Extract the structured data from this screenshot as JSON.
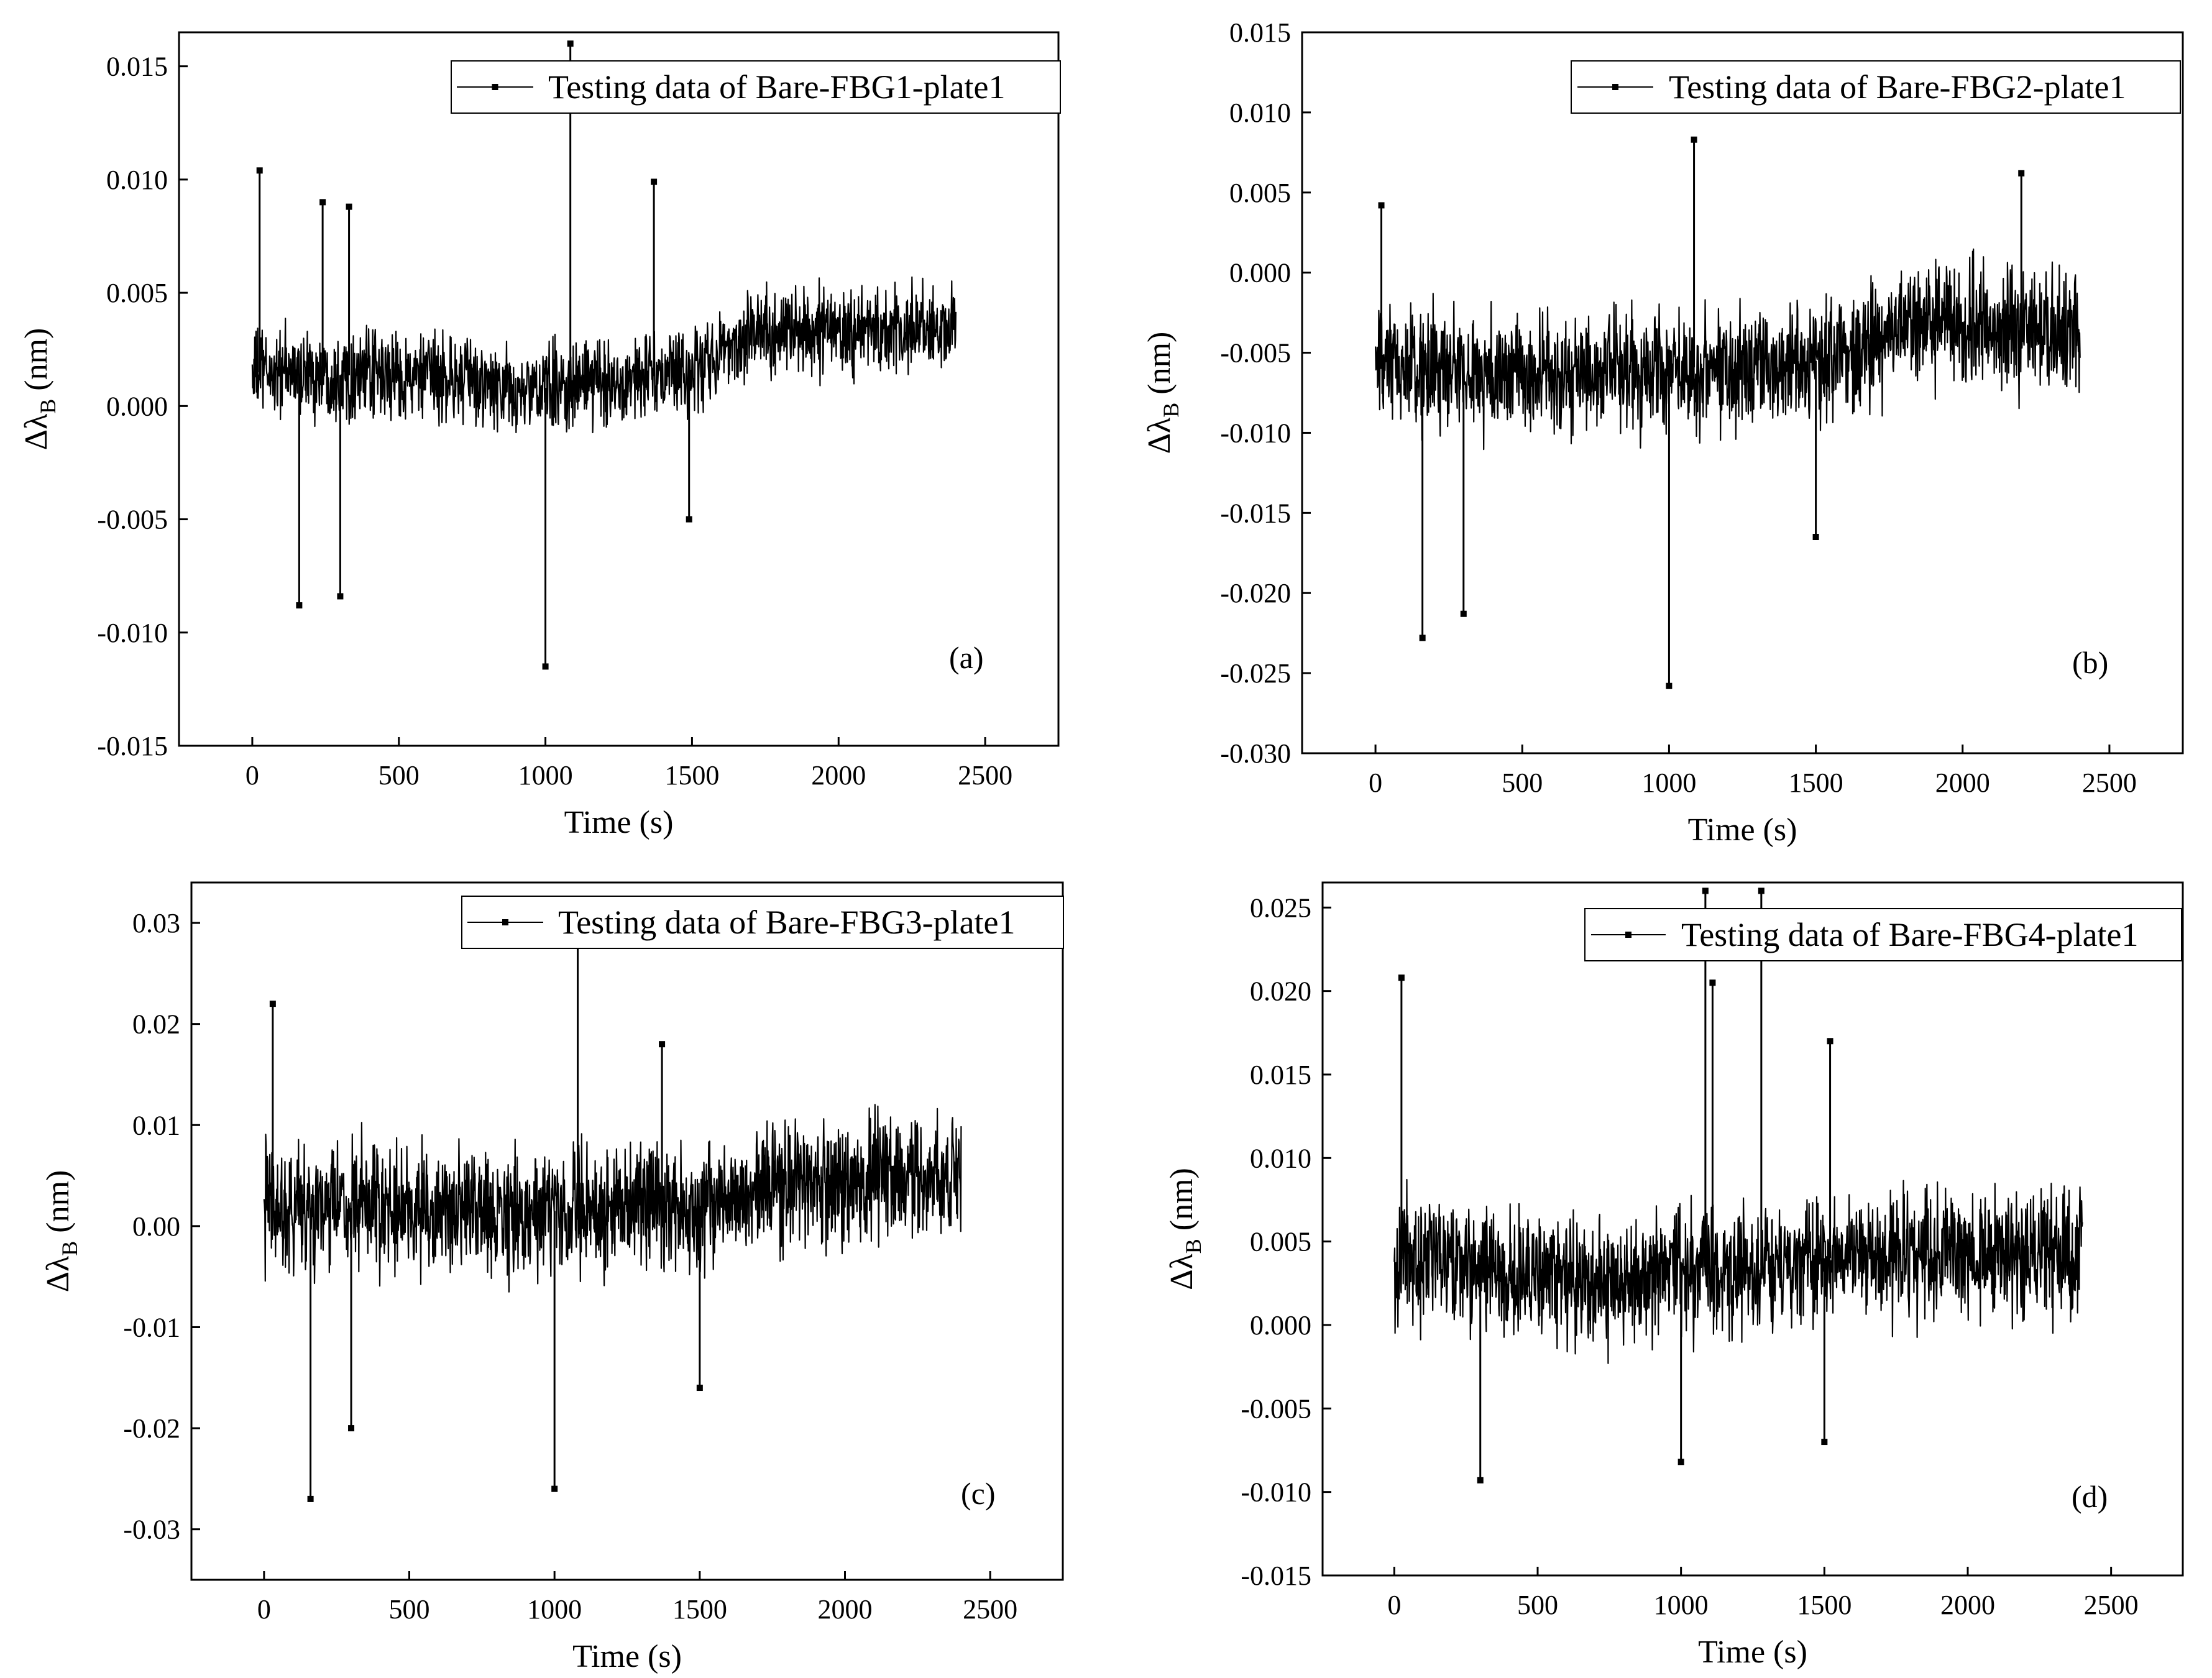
{
  "figure": {
    "background": "#ffffff",
    "ink": "#000000"
  },
  "chart_data": [
    {
      "type": "line",
      "panel": "(a)",
      "legend": "Testing data of Bare-FBG1-plate1",
      "legend_position": "top-right",
      "xlabel": "Time (s)",
      "ylabel_main": "Δλ",
      "ylabel_sub": "B",
      "ylabel_unit": " (nm)",
      "xlim": [
        -250,
        2750
      ],
      "ylim": [
        -0.015,
        0.0165
      ],
      "xticks": [
        0,
        500,
        1000,
        1500,
        2000,
        2500
      ],
      "xtick_labels": [
        "0",
        "500",
        "1000",
        "1500",
        "2000",
        "2500"
      ],
      "yticks": [
        -0.015,
        -0.01,
        -0.005,
        0,
        0.005,
        0.01,
        0.015
      ],
      "ytick_labels": [
        "-0.015",
        "-0.010",
        "-0.005",
        "0.000",
        "0.005",
        "0.010",
        "0.015"
      ],
      "x_range": [
        0,
        2400
      ],
      "baseline": [
        [
          0,
          0.0015
        ],
        [
          700,
          0.0012
        ],
        [
          900,
          0.0005
        ],
        [
          1000,
          0.0008
        ],
        [
          1500,
          0.0015
        ],
        [
          1700,
          0.0033
        ],
        [
          2400,
          0.0033
        ]
      ],
      "band_halfwidth": 0.0028,
      "spikes": [
        [
          25,
          0.0104
        ],
        [
          160,
          -0.0088
        ],
        [
          240,
          0.009
        ],
        [
          300,
          -0.0084
        ],
        [
          330,
          0.0088
        ],
        [
          1000,
          -0.0115
        ],
        [
          1085,
          0.016
        ],
        [
          1370,
          0.0099
        ],
        [
          1490,
          -0.005
        ]
      ]
    },
    {
      "type": "line",
      "panel": "(b)",
      "legend": "Testing data of Bare-FBG2-plate1",
      "legend_position": "top-right",
      "xlabel": "Time (s)",
      "ylabel_main": "Δλ",
      "ylabel_sub": "B",
      "ylabel_unit": " (nm)",
      "xlim": [
        -250,
        2750
      ],
      "ylim": [
        -0.03,
        0.015
      ],
      "xticks": [
        0,
        500,
        1000,
        1500,
        2000,
        2500
      ],
      "xtick_labels": [
        "0",
        "500",
        "1000",
        "1500",
        "2000",
        "2500"
      ],
      "yticks": [
        -0.03,
        -0.025,
        -0.02,
        -0.015,
        -0.01,
        -0.005,
        0,
        0.005,
        0.01,
        0.015
      ],
      "ytick_labels": [
        "-0.030",
        "-0.025",
        "-0.020",
        "-0.015",
        "-0.010",
        "-0.005",
        "0.000",
        "0.005",
        "0.010",
        "0.015"
      ],
      "x_range": [
        0,
        2400
      ],
      "baseline": [
        [
          0,
          -0.006
        ],
        [
          700,
          -0.0065
        ],
        [
          1000,
          -0.006
        ],
        [
          1500,
          -0.0055
        ],
        [
          1900,
          -0.003
        ],
        [
          2400,
          -0.004
        ]
      ],
      "band_halfwidth": 0.0055,
      "spikes": [
        [
          20,
          0.0042
        ],
        [
          160,
          -0.0228
        ],
        [
          300,
          -0.0213
        ],
        [
          1000,
          -0.0258
        ],
        [
          1085,
          0.0083
        ],
        [
          1500,
          -0.0165
        ],
        [
          2200,
          0.0062
        ]
      ]
    },
    {
      "type": "line",
      "panel": "(c)",
      "legend": "Testing data of Bare-FBG3-plate1",
      "legend_position": "top-right",
      "xlabel": "Time (s)",
      "ylabel_main": "Δλ",
      "ylabel_sub": "B",
      "ylabel_unit": " (nm)",
      "xlim": [
        -250,
        2750
      ],
      "ylim": [
        -0.035,
        0.034
      ],
      "xticks": [
        0,
        500,
        1000,
        1500,
        2000,
        2500
      ],
      "xtick_labels": [
        "0",
        "500",
        "1000",
        "1500",
        "2000",
        "2500"
      ],
      "yticks": [
        -0.03,
        -0.02,
        -0.01,
        0,
        0.01,
        0.02,
        0.03
      ],
      "ytick_labels": [
        "-0.03",
        "-0.02",
        "-0.01",
        "0.00",
        "0.01",
        "0.02",
        "0.03"
      ],
      "x_range": [
        0,
        2400
      ],
      "baseline": [
        [
          0,
          0.002
        ],
        [
          900,
          0.001
        ],
        [
          1000,
          0.0015
        ],
        [
          1500,
          0.002
        ],
        [
          1700,
          0.004
        ],
        [
          2400,
          0.005
        ]
      ],
      "band_halfwidth": 0.009,
      "spikes": [
        [
          30,
          0.022
        ],
        [
          160,
          -0.027
        ],
        [
          300,
          -0.02
        ],
        [
          1000,
          -0.026
        ],
        [
          1080,
          0.029
        ],
        [
          1370,
          0.018
        ],
        [
          1500,
          -0.016
        ]
      ]
    },
    {
      "type": "line",
      "panel": "(d)",
      "legend": "Testing data of Bare-FBG4-plate1",
      "legend_position": "top-right",
      "xlabel": "Time (s)",
      "ylabel_main": "Δλ",
      "ylabel_sub": "B",
      "ylabel_unit": " (nm)",
      "xlim": [
        -250,
        2750
      ],
      "ylim": [
        -0.015,
        0.0265
      ],
      "xticks": [
        0,
        500,
        1000,
        1500,
        2000,
        2500
      ],
      "xtick_labels": [
        "0",
        "500",
        "1000",
        "1500",
        "2000",
        "2500"
      ],
      "yticks": [
        -0.015,
        -0.01,
        -0.005,
        0,
        0.005,
        0.01,
        0.015,
        0.02,
        0.025
      ],
      "ytick_labels": [
        "-0.015",
        "-0.010",
        "-0.005",
        "0.000",
        "0.005",
        "0.010",
        "0.015",
        "0.020",
        "0.025"
      ],
      "x_range": [
        0,
        2400
      ],
      "baseline": [
        [
          0,
          0.004
        ],
        [
          700,
          0.0025
        ],
        [
          1000,
          0.003
        ],
        [
          1500,
          0.004
        ],
        [
          2400,
          0.0045
        ]
      ],
      "band_halfwidth": 0.0055,
      "spikes": [
        [
          25,
          0.0208
        ],
        [
          300,
          -0.0093
        ],
        [
          1000,
          -0.0082
        ],
        [
          1085,
          0.026
        ],
        [
          1110,
          0.0205
        ],
        [
          1280,
          0.026
        ],
        [
          1500,
          -0.007
        ],
        [
          1520,
          0.017
        ]
      ]
    }
  ]
}
